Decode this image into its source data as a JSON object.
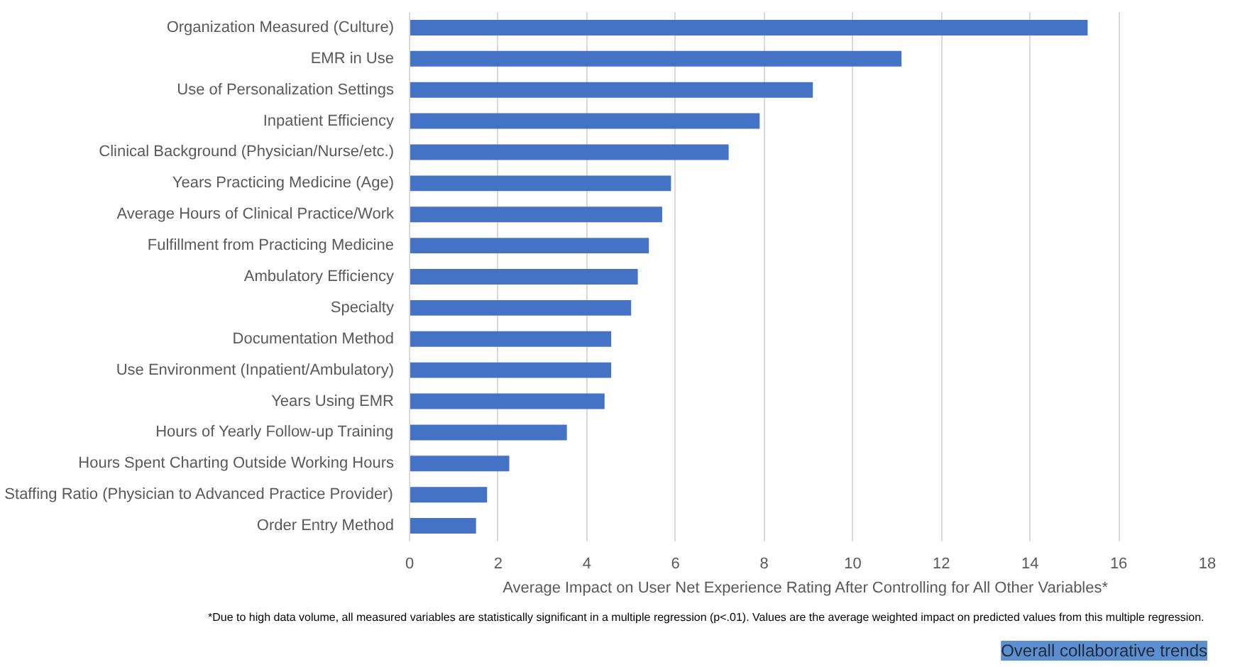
{
  "chart_data": {
    "type": "bar",
    "orientation": "horizontal",
    "categories": [
      "Organization Measured (Culture)",
      "EMR in Use",
      "Use of Personalization Settings",
      "Inpatient Efficiency",
      "Clinical Background (Physician/Nurse/etc.)",
      "Years Practicing Medicine (Age)",
      "Average Hours of Clinical Practice/Work",
      "Fulfillment from Practicing Medicine",
      "Ambulatory Efficiency",
      "Specialty",
      "Documentation Method",
      "Use Environment (Inpatient/Ambulatory)",
      "Years Using EMR",
      "Hours of Yearly Follow-up Training",
      "Hours Spent Charting Outside Working Hours",
      "Staffing Ratio (Physician to Advanced Practice Provider)",
      "Order Entry Method"
    ],
    "values": [
      15.3,
      11.1,
      9.1,
      7.9,
      7.2,
      5.9,
      5.7,
      5.4,
      5.15,
      5.0,
      4.55,
      4.55,
      4.4,
      3.55,
      2.25,
      1.75,
      1.5
    ],
    "color": "#4472c4",
    "xlabel": "Average Impact on User Net Experience Rating After Controlling  for All Other Variables*",
    "xlim": [
      0,
      18
    ],
    "xticks": [
      0,
      2,
      4,
      6,
      8,
      10,
      12,
      14,
      16,
      18
    ],
    "grid": "x",
    "annotations": [
      "*Due to high data volume, all measured variables are statistically significant in a  multiple regression (p<.01). Values are the average weighted impact on predicted values from this multiple regression.",
      "Overall collaborative trends"
    ]
  }
}
